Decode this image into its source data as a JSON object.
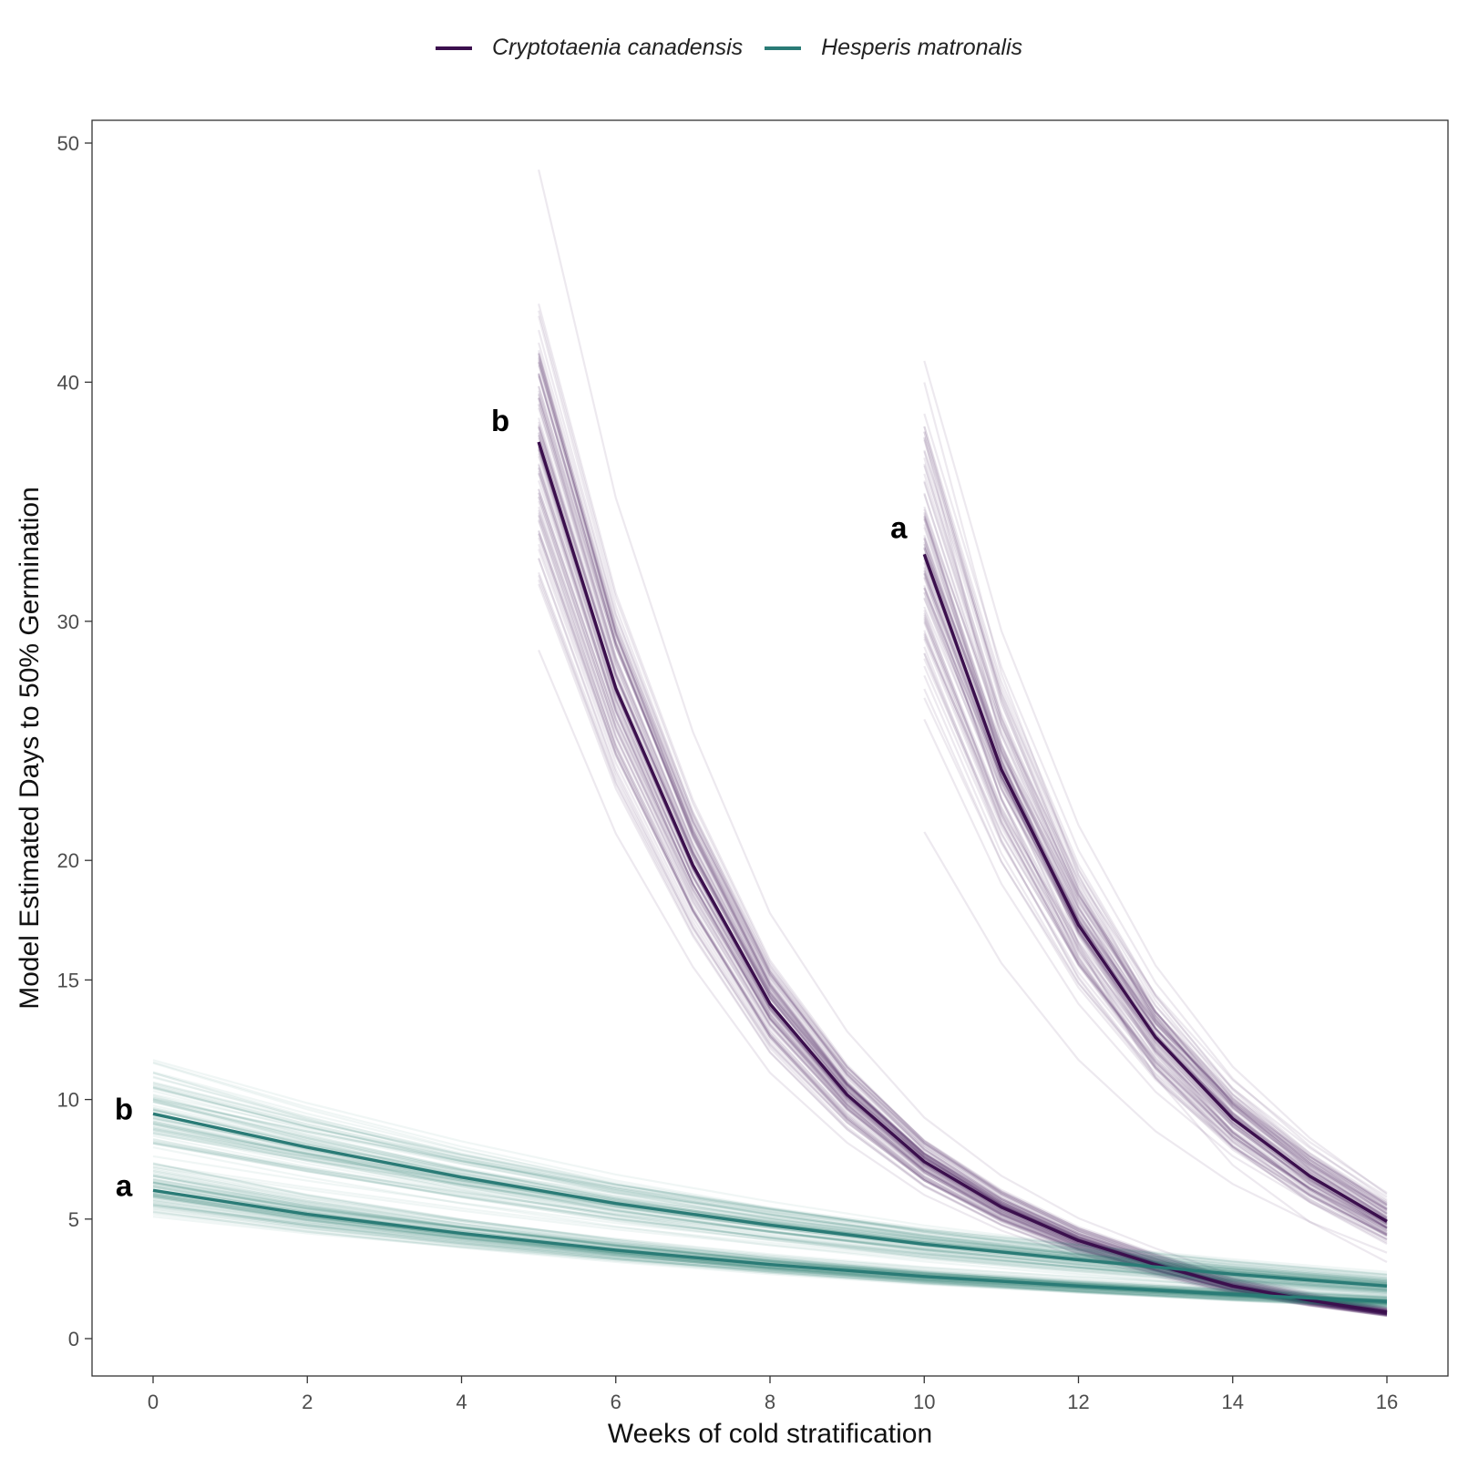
{
  "chart_data": {
    "type": "line",
    "xlabel": "Weeks of cold stratification",
    "ylabel": "Model Estimated Days to 50% Germination",
    "xlim": [
      -0.8,
      16.8
    ],
    "ylim": [
      -1.3,
      51
    ],
    "x_ticks": [
      0,
      2,
      4,
      6,
      8,
      10,
      12,
      14,
      16
    ],
    "y_ticks": [
      0,
      5,
      10,
      15,
      20,
      30,
      40,
      50
    ],
    "y_scale": "square-root",
    "grid": false,
    "legend_position": "top",
    "legend": [
      {
        "name": "Cryptotaenia canadensis",
        "color": "#3b0f4d"
      },
      {
        "name": "Hesperis matronalis",
        "color": "#2a7b76"
      }
    ],
    "series": [
      {
        "name": "Cryptotaenia canadensis",
        "group_label": "b",
        "color": "#3b0f4d",
        "x": [
          5,
          6,
          7,
          8,
          9,
          10,
          11,
          12,
          13,
          14,
          15,
          16
        ],
        "y": [
          37.5,
          27.2,
          19.8,
          14.0,
          10.2,
          7.4,
          5.5,
          4.1,
          3.1,
          2.2,
          1.6,
          1.1
        ]
      },
      {
        "name": "Cryptotaenia canadensis",
        "group_label": "a",
        "color": "#3b0f4d",
        "x": [
          10,
          11,
          12,
          13,
          14,
          15,
          16
        ],
        "y": [
          32.8,
          23.8,
          17.3,
          12.6,
          9.2,
          6.8,
          4.9
        ]
      },
      {
        "name": "Hesperis matronalis",
        "group_label": "b",
        "color": "#2a7b76",
        "x": [
          0,
          2,
          4,
          6,
          8,
          10,
          12,
          14,
          16
        ],
        "y": [
          9.4,
          8.0,
          6.75,
          5.65,
          4.75,
          3.95,
          3.3,
          2.7,
          2.2
        ]
      },
      {
        "name": "Hesperis matronalis",
        "group_label": "a",
        "color": "#2a7b76",
        "x": [
          0,
          2,
          4,
          6,
          8,
          10,
          12,
          14,
          16
        ],
        "y": [
          6.2,
          5.2,
          4.4,
          3.7,
          3.1,
          2.6,
          2.2,
          1.85,
          1.55
        ]
      }
    ],
    "annotations": [
      {
        "text": "b",
        "series": 0
      },
      {
        "text": "a",
        "series": 1
      },
      {
        "text": "b",
        "series": 2
      },
      {
        "text": "a",
        "series": 3
      }
    ]
  }
}
